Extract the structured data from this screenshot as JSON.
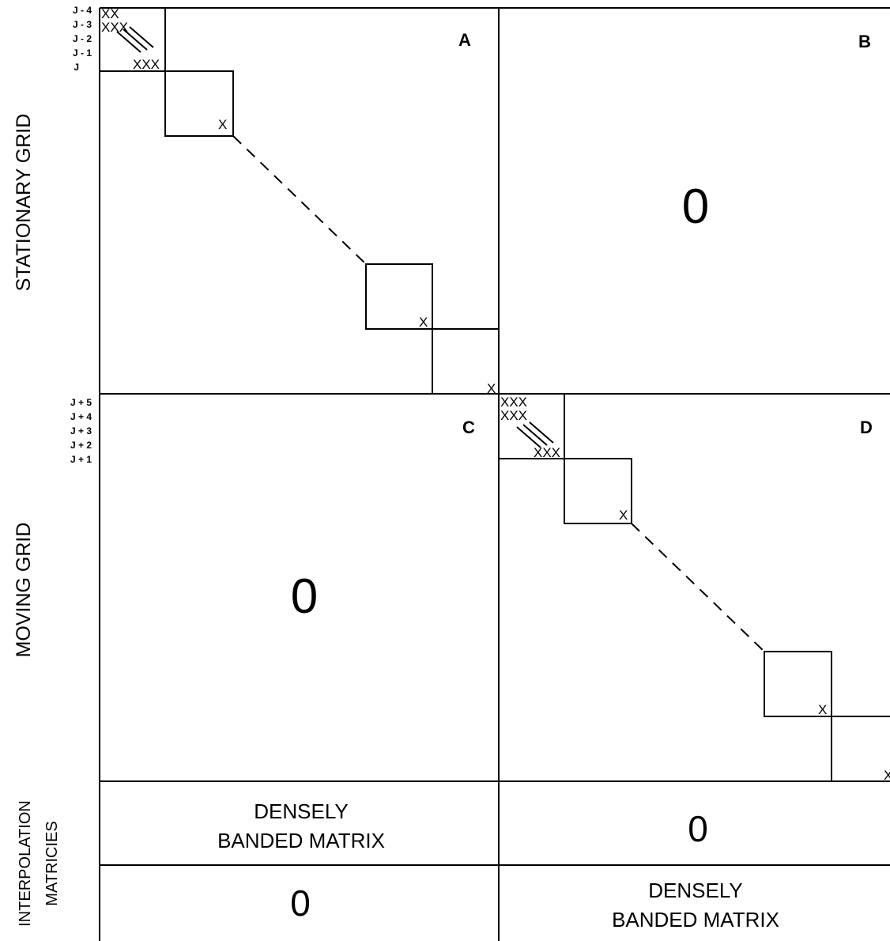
{
  "side_labels": {
    "stationary": "STATIONARY GRID",
    "moving": "MOVING GRID",
    "interp1": "INTERPOLATION",
    "interp2": "MATRICIES"
  },
  "blocks": {
    "a": "A",
    "b": "B",
    "c": "C",
    "d": "D"
  },
  "zeros": {
    "b": "0",
    "c": "0",
    "interp_top_right": "0",
    "interp_bottom_left": "0"
  },
  "interp": {
    "top_left": [
      "DENSELY",
      "BANDED MATRIX"
    ],
    "bottom_right": [
      "DENSELY",
      "BANDED MATRIX"
    ]
  },
  "row_labels_top": [
    "J - 4",
    "J - 3",
    "J - 2",
    "J - 1",
    "J"
  ],
  "row_labels_bottom": [
    "J + 5",
    "J + 4",
    "J + 3",
    "J + 2",
    "J + 1"
  ],
  "marks": {
    "x": "X",
    "xx": "XX",
    "xxx": "XXX"
  }
}
